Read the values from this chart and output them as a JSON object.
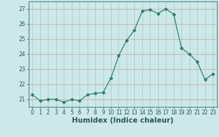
{
  "x": [
    0,
    1,
    2,
    3,
    4,
    5,
    6,
    7,
    8,
    9,
    10,
    11,
    12,
    13,
    14,
    15,
    16,
    17,
    18,
    19,
    20,
    21,
    22,
    23
  ],
  "y": [
    21.3,
    20.9,
    21.0,
    21.0,
    20.8,
    21.0,
    20.9,
    21.3,
    21.4,
    21.45,
    22.4,
    23.9,
    24.9,
    25.6,
    26.85,
    26.95,
    26.7,
    27.0,
    26.65,
    24.4,
    24.0,
    23.5,
    22.3,
    22.7
  ],
  "line_color": "#2e7d6e",
  "marker": "D",
  "marker_size": 2.0,
  "bg_color": "#cce8e8",
  "grid_color_v": "#aacccc",
  "grid_color_h": "#ccaaaa",
  "xlabel": "Humidex (Indice chaleur)",
  "xlim": [
    -0.5,
    23.5
  ],
  "ylim": [
    20.5,
    27.5
  ],
  "yticks": [
    21,
    22,
    23,
    24,
    25,
    26,
    27
  ],
  "xticks": [
    0,
    1,
    2,
    3,
    4,
    5,
    6,
    7,
    8,
    9,
    10,
    11,
    12,
    13,
    14,
    15,
    16,
    17,
    18,
    19,
    20,
    21,
    22,
    23
  ],
  "tick_fontsize": 5.5,
  "xlabel_fontsize": 7.5
}
